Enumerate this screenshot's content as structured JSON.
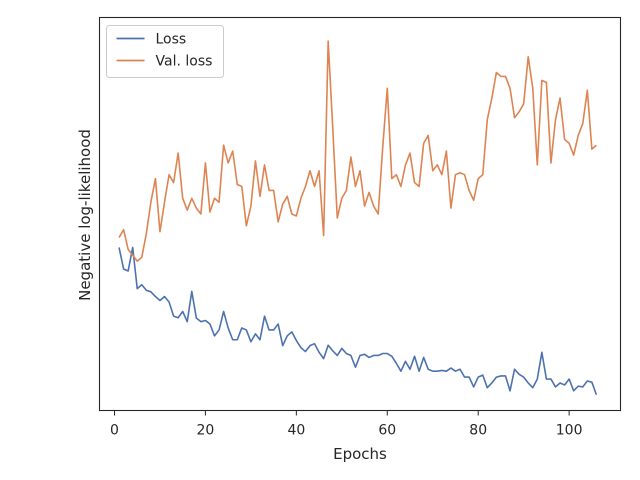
{
  "chart_data": {
    "type": "line",
    "xlabel": "Epochs",
    "ylabel": "Negative log-likelihood",
    "xlim": [
      -3.3,
      111.3
    ],
    "ylim": [
      0,
      1
    ],
    "x_ticks": [
      0,
      20,
      40,
      60,
      80,
      100
    ],
    "y_ticks_shown": false,
    "grid": false,
    "legend_position": "upper-left",
    "series": [
      {
        "name": "Loss",
        "color": "#4c72b0",
        "x": [
          1,
          2,
          3,
          4,
          5,
          6,
          7,
          8,
          9,
          10,
          11,
          12,
          13,
          14,
          15,
          16,
          17,
          18,
          19,
          20,
          21,
          22,
          23,
          24,
          25,
          26,
          27,
          28,
          29,
          30,
          31,
          32,
          33,
          34,
          35,
          36,
          37,
          38,
          39,
          40,
          41,
          42,
          43,
          44,
          45,
          46,
          47,
          48,
          49,
          50,
          51,
          52,
          53,
          54,
          55,
          56,
          57,
          58,
          59,
          60,
          61,
          62,
          63,
          64,
          65,
          66,
          67,
          68,
          69,
          70,
          71,
          72,
          73,
          74,
          75,
          76,
          77,
          78,
          79,
          80,
          81,
          82,
          83,
          84,
          85,
          86,
          87,
          88,
          89,
          90,
          91,
          92,
          93,
          94,
          95,
          96,
          97,
          98,
          99,
          100,
          101,
          102,
          103,
          104,
          105,
          106
        ],
        "values": [
          0.415,
          0.36,
          0.355,
          0.415,
          0.31,
          0.32,
          0.306,
          0.302,
          0.29,
          0.28,
          0.29,
          0.276,
          0.24,
          0.236,
          0.252,
          0.226,
          0.303,
          0.235,
          0.226,
          0.229,
          0.22,
          0.19,
          0.205,
          0.252,
          0.21,
          0.18,
          0.18,
          0.21,
          0.205,
          0.175,
          0.195,
          0.18,
          0.24,
          0.205,
          0.205,
          0.22,
          0.165,
          0.19,
          0.2,
          0.178,
          0.16,
          0.15,
          0.165,
          0.17,
          0.148,
          0.132,
          0.166,
          0.152,
          0.14,
          0.158,
          0.145,
          0.14,
          0.11,
          0.14,
          0.143,
          0.135,
          0.14,
          0.14,
          0.145,
          0.145,
          0.138,
          0.12,
          0.1,
          0.125,
          0.105,
          0.138,
          0.1,
          0.135,
          0.105,
          0.1,
          0.1,
          0.102,
          0.1,
          0.108,
          0.1,
          0.105,
          0.085,
          0.085,
          0.06,
          0.085,
          0.09,
          0.058,
          0.07,
          0.085,
          0.088,
          0.088,
          0.05,
          0.105,
          0.092,
          0.085,
          0.07,
          0.058,
          0.08,
          0.148,
          0.08,
          0.08,
          0.06,
          0.07,
          0.065,
          0.08,
          0.05,
          0.062,
          0.06,
          0.075,
          0.072,
          0.04
        ]
      },
      {
        "name": "Val. loss",
        "color": "#dd8452",
        "x": [
          1,
          2,
          3,
          4,
          5,
          6,
          7,
          8,
          9,
          10,
          11,
          12,
          13,
          14,
          15,
          16,
          17,
          18,
          19,
          20,
          21,
          22,
          23,
          24,
          25,
          26,
          27,
          28,
          29,
          30,
          31,
          32,
          33,
          34,
          35,
          36,
          37,
          38,
          39,
          40,
          41,
          42,
          43,
          44,
          45,
          46,
          47,
          48,
          49,
          50,
          51,
          52,
          53,
          54,
          55,
          56,
          57,
          58,
          59,
          60,
          61,
          62,
          63,
          64,
          65,
          66,
          67,
          68,
          69,
          70,
          71,
          72,
          73,
          74,
          75,
          76,
          77,
          78,
          79,
          80,
          81,
          82,
          83,
          84,
          85,
          86,
          87,
          88,
          89,
          90,
          91,
          92,
          93,
          94,
          95,
          96,
          97,
          98,
          99,
          100,
          101,
          102,
          103,
          104,
          105,
          106
        ],
        "values": [
          0.44,
          0.46,
          0.41,
          0.395,
          0.38,
          0.39,
          0.45,
          0.53,
          0.59,
          0.455,
          0.53,
          0.6,
          0.58,
          0.655,
          0.54,
          0.51,
          0.54,
          0.515,
          0.5,
          0.63,
          0.505,
          0.54,
          0.53,
          0.675,
          0.63,
          0.66,
          0.575,
          0.57,
          0.47,
          0.52,
          0.635,
          0.545,
          0.625,
          0.56,
          0.56,
          0.48,
          0.525,
          0.545,
          0.5,
          0.495,
          0.54,
          0.57,
          0.61,
          0.57,
          0.61,
          0.445,
          0.94,
          0.72,
          0.49,
          0.54,
          0.56,
          0.645,
          0.57,
          0.61,
          0.52,
          0.555,
          0.52,
          0.5,
          0.67,
          0.82,
          0.59,
          0.6,
          0.57,
          0.625,
          0.655,
          0.58,
          0.57,
          0.68,
          0.7,
          0.61,
          0.625,
          0.6,
          0.66,
          0.515,
          0.6,
          0.605,
          0.6,
          0.56,
          0.535,
          0.59,
          0.6,
          0.74,
          0.795,
          0.86,
          0.85,
          0.85,
          0.82,
          0.745,
          0.76,
          0.78,
          0.9,
          0.82,
          0.625,
          0.84,
          0.835,
          0.63,
          0.74,
          0.795,
          0.69,
          0.68,
          0.65,
          0.7,
          0.73,
          0.815,
          0.665,
          0.675
        ]
      }
    ]
  }
}
